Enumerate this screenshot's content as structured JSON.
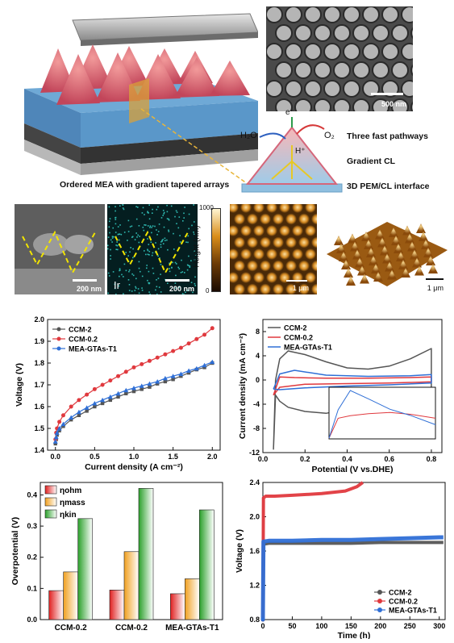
{
  "schematic": {
    "caption": "Ordered MEA with gradient tapered arrays",
    "sem_scale": "500 nm",
    "pathway_labels": [
      "Three fast pathways",
      "Gradient CL",
      "3D PEM/CL interface"
    ],
    "chem_h2o": "H₂O",
    "chem_o2": "O₂",
    "chem_e": "e⁻",
    "chem_h": "H⁺"
  },
  "micro": {
    "scale_200_a": "200 nm",
    "scale_200_b": "200 nm",
    "element_label": "Ir",
    "height_label": "Height (nm)",
    "height_max": "1000",
    "height_min": "0",
    "scale_1um_a": "1 μm",
    "scale_1um_b": "1 μm"
  },
  "colors": {
    "ccm2": "#555555",
    "ccm02": "#e0393e",
    "mea": "#2f6fd6"
  },
  "chart_data": [
    {
      "type": "line",
      "xlabel": "Current density (A cm⁻²)",
      "ylabel": "Voltage (V)",
      "xlim": [
        -0.1,
        2.1
      ],
      "ylim": [
        1.4,
        2.0
      ],
      "xticks": [
        "0.0",
        "0.5",
        "1.0",
        "1.5",
        "2.0"
      ],
      "yticks": [
        "1.4",
        "1.5",
        "1.6",
        "1.7",
        "1.8",
        "1.9",
        "2.0"
      ],
      "legend": "top-left",
      "series": [
        {
          "name": "CCM-2",
          "x": [
            0,
            0.01,
            0.02,
            0.05,
            0.1,
            0.2,
            0.3,
            0.4,
            0.5,
            0.6,
            0.7,
            0.8,
            0.9,
            1.0,
            1.1,
            1.2,
            1.3,
            1.4,
            1.5,
            1.6,
            1.7,
            1.8,
            1.9,
            2.0
          ],
          "y": [
            1.43,
            1.45,
            1.47,
            1.49,
            1.51,
            1.54,
            1.56,
            1.58,
            1.6,
            1.615,
            1.63,
            1.645,
            1.66,
            1.67,
            1.68,
            1.69,
            1.705,
            1.715,
            1.725,
            1.74,
            1.755,
            1.77,
            1.78,
            1.8
          ]
        },
        {
          "name": "CCM-0.2",
          "x": [
            0,
            0.01,
            0.02,
            0.05,
            0.1,
            0.2,
            0.3,
            0.4,
            0.5,
            0.6,
            0.7,
            0.8,
            0.9,
            1.0,
            1.1,
            1.2,
            1.3,
            1.4,
            1.5,
            1.6,
            1.7,
            1.8,
            1.9,
            2.0
          ],
          "y": [
            1.45,
            1.48,
            1.5,
            1.53,
            1.56,
            1.6,
            1.63,
            1.655,
            1.68,
            1.7,
            1.72,
            1.74,
            1.76,
            1.78,
            1.795,
            1.81,
            1.825,
            1.84,
            1.855,
            1.87,
            1.89,
            1.91,
            1.93,
            1.96
          ]
        },
        {
          "name": "MEA-GTAs-T1",
          "x": [
            0,
            0.01,
            0.02,
            0.05,
            0.1,
            0.2,
            0.3,
            0.4,
            0.5,
            0.6,
            0.7,
            0.8,
            0.9,
            1.0,
            1.1,
            1.2,
            1.3,
            1.4,
            1.5,
            1.6,
            1.7,
            1.8,
            1.9,
            2.0
          ],
          "y": [
            1.44,
            1.46,
            1.48,
            1.5,
            1.52,
            1.55,
            1.575,
            1.595,
            1.615,
            1.63,
            1.645,
            1.66,
            1.675,
            1.685,
            1.695,
            1.705,
            1.715,
            1.73,
            1.74,
            1.75,
            1.765,
            1.775,
            1.79,
            1.805
          ]
        }
      ]
    },
    {
      "type": "line",
      "xlabel": "Potential (V vs.DHE)",
      "ylabel": "Current density (mA cm⁻²)",
      "xlim": [
        0,
        0.85
      ],
      "ylim": [
        -12,
        10
      ],
      "xticks": [
        "0.0",
        "0.2",
        "0.4",
        "0.6",
        "0.8"
      ],
      "yticks": [
        "-12",
        "-8",
        "-4",
        "0",
        "4",
        "8"
      ],
      "legend": "top-left",
      "series": [
        {
          "name": "CCM-2",
          "x": [
            0.05,
            0.06,
            0.08,
            0.12,
            0.2,
            0.3,
            0.4,
            0.5,
            0.6,
            0.7,
            0.8,
            0.8,
            0.7,
            0.6,
            0.5,
            0.4,
            0.3,
            0.2,
            0.12,
            0.08,
            0.06,
            0.05
          ],
          "y": [
            -11.5,
            0,
            3.5,
            4.8,
            4.2,
            3,
            2,
            1.8,
            2.3,
            3.5,
            5.2,
            -1.2,
            -1.8,
            -2.5,
            -3.5,
            -4.8,
            -5.5,
            -5.2,
            -4.5,
            -3.5,
            -2.5,
            -11.5
          ]
        },
        {
          "name": "CCM-0.2",
          "x": [
            0.05,
            0.08,
            0.15,
            0.3,
            0.5,
            0.7,
            0.8,
            0.8,
            0.6,
            0.4,
            0.2,
            0.08,
            0.05
          ],
          "y": [
            -2.5,
            0.5,
            0.4,
            0.3,
            0.3,
            0.4,
            0.5,
            -0.3,
            -0.5,
            -0.6,
            -0.7,
            -1.2,
            -2.5
          ]
        },
        {
          "name": "MEA-GTAs-T1",
          "x": [
            0.05,
            0.08,
            0.15,
            0.3,
            0.5,
            0.7,
            0.8,
            0.8,
            0.6,
            0.4,
            0.2,
            0.08,
            0.05
          ],
          "y": [
            -1.5,
            1,
            1.6,
            0.8,
            0.6,
            0.7,
            0.9,
            -0.5,
            -0.8,
            -1.0,
            -1.3,
            -1.6,
            -1.5
          ]
        }
      ]
    },
    {
      "type": "bar",
      "ylabel": "Overpotential (V)",
      "categories": [
        "CCM-0.2",
        "CCM-0.2",
        "MEA-GTAs-T1"
      ],
      "ylim": [
        0,
        0.44
      ],
      "yticks": [
        "0.0",
        "0.1",
        "0.2",
        "0.3",
        "0.4"
      ],
      "legend": "top-left",
      "series": [
        {
          "name": "ηohm",
          "values": [
            0.093,
            0.095,
            0.083
          ]
        },
        {
          "name": "ηmass",
          "values": [
            0.153,
            0.218,
            0.131
          ]
        },
        {
          "name": "ηkin",
          "values": [
            0.324,
            0.421,
            0.352
          ]
        }
      ]
    },
    {
      "type": "line",
      "xlabel": "Time (h)",
      "ylabel": "Voltage (V)",
      "xlim": [
        0,
        310
      ],
      "ylim": [
        0.8,
        2.4
      ],
      "xticks": [
        "0",
        "50",
        "100",
        "150",
        "200",
        "250",
        "300"
      ],
      "yticks": [
        "0.8",
        "1.2",
        "1.6",
        "2.0",
        "2.4"
      ],
      "legend": "bottom-right",
      "series": [
        {
          "name": "CCM-2",
          "x": [
            0,
            1,
            10,
            50,
            100,
            150,
            200,
            250,
            300,
            307
          ],
          "y": [
            0.8,
            1.68,
            1.69,
            1.69,
            1.69,
            1.69,
            1.7,
            1.7,
            1.7,
            1.7
          ]
        },
        {
          "name": "CCM-0.2",
          "x": [
            0,
            1,
            5,
            20,
            50,
            100,
            140,
            160,
            170
          ],
          "y": [
            0.8,
            2.22,
            2.24,
            2.24,
            2.25,
            2.27,
            2.3,
            2.35,
            2.4
          ]
        },
        {
          "name": "MEA-GTAs-T1",
          "x": [
            0,
            1,
            10,
            50,
            100,
            150,
            200,
            250,
            300,
            307
          ],
          "y": [
            0.8,
            1.71,
            1.72,
            1.72,
            1.73,
            1.73,
            1.74,
            1.75,
            1.76,
            1.76
          ]
        }
      ]
    }
  ]
}
